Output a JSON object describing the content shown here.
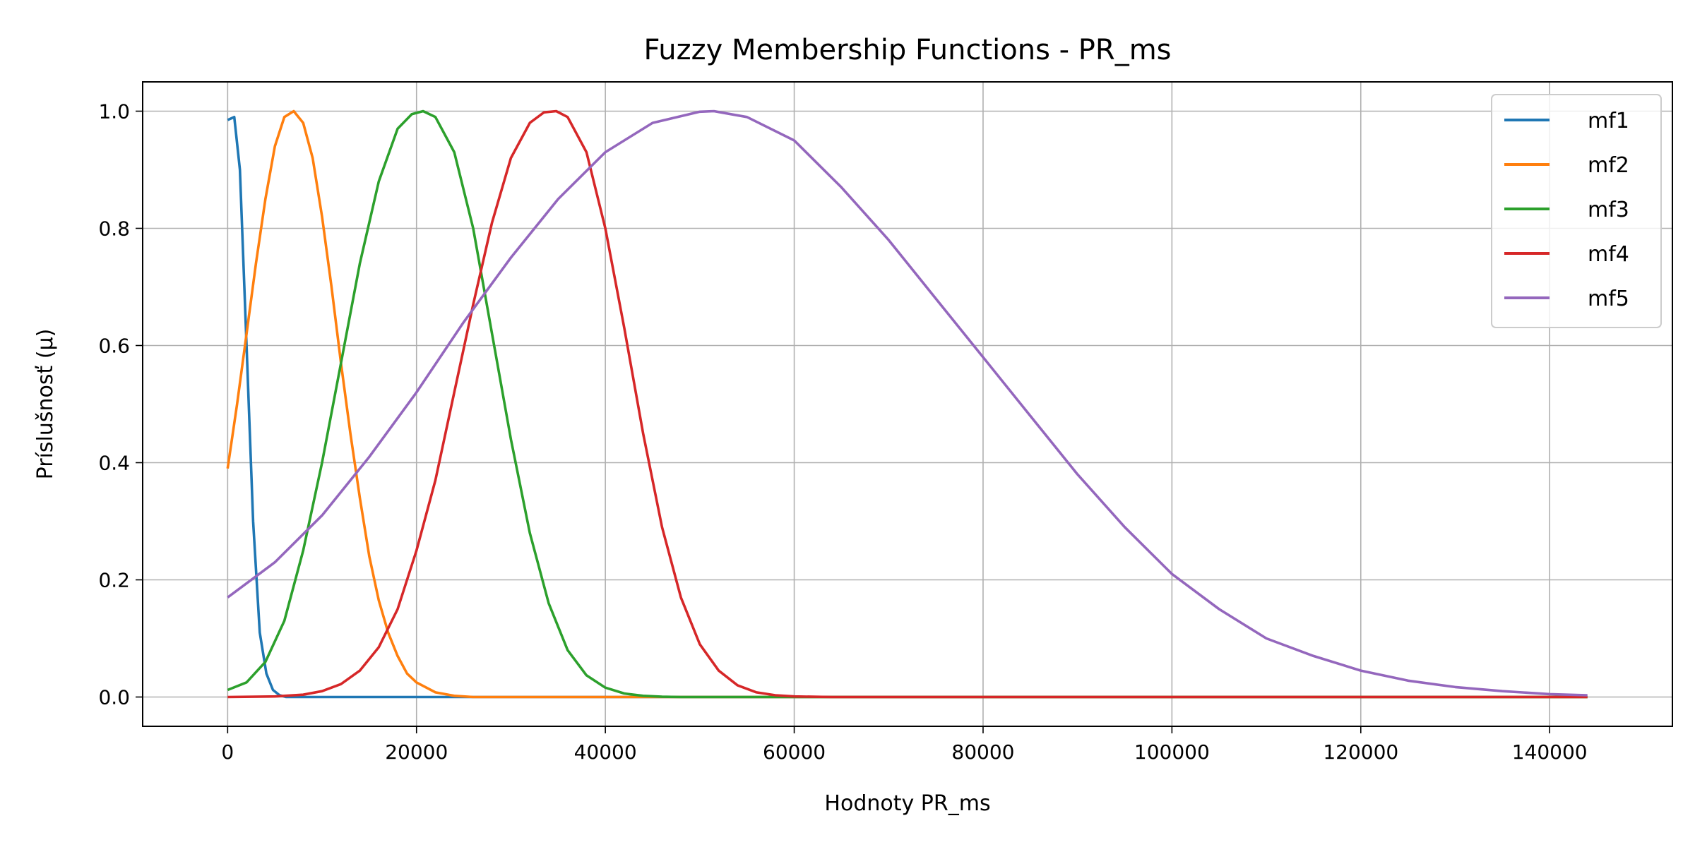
{
  "chart_data": {
    "type": "line",
    "title": "Fuzzy Membership Functions - PR_ms",
    "xlabel": "Hodnoty PR_ms",
    "ylabel": "Príslušnosť (μ)",
    "xlim": [
      -9000,
      153000
    ],
    "ylim": [
      -0.05,
      1.05
    ],
    "xticks": [
      0,
      20000,
      40000,
      60000,
      80000,
      100000,
      120000,
      140000
    ],
    "yticks": [
      0.0,
      0.2,
      0.4,
      0.6,
      0.8,
      1.0
    ],
    "xtick_labels": [
      "0",
      "20000",
      "40000",
      "60000",
      "80000",
      "100000",
      "120000",
      "140000"
    ],
    "ytick_labels": [
      "0.0",
      "0.2",
      "0.4",
      "0.6",
      "0.8",
      "1.0"
    ],
    "grid": true,
    "legend_position": "top-right",
    "series": [
      {
        "name": "mf1",
        "color": "#1f77b4",
        "x": [
          0,
          700,
          1300,
          2000,
          2700,
          3400,
          4100,
          4800,
          5500,
          6200,
          7000,
          8000,
          144000
        ],
        "y": [
          0.985,
          0.99,
          0.9,
          0.6,
          0.3,
          0.11,
          0.04,
          0.012,
          0.003,
          0.0,
          0.0,
          0.0,
          0.0
        ]
      },
      {
        "name": "mf2",
        "color": "#ff7f0e",
        "x": [
          0,
          1000,
          2000,
          3000,
          4000,
          5000,
          6000,
          7000,
          8000,
          9000,
          10000,
          11000,
          12000,
          13000,
          14000,
          15000,
          16000,
          17000,
          18000,
          19000,
          20000,
          22000,
          24000,
          26000,
          28000,
          144000
        ],
        "y": [
          0.39,
          0.5,
          0.62,
          0.74,
          0.85,
          0.94,
          0.99,
          1.0,
          0.98,
          0.92,
          0.82,
          0.7,
          0.57,
          0.45,
          0.34,
          0.24,
          0.165,
          0.11,
          0.07,
          0.04,
          0.025,
          0.008,
          0.002,
          0.0,
          0.0,
          0.0
        ]
      },
      {
        "name": "mf3",
        "color": "#2ca02c",
        "x": [
          0,
          2000,
          4000,
          6000,
          8000,
          10000,
          12000,
          14000,
          16000,
          18000,
          19500,
          20700,
          22000,
          24000,
          26000,
          28000,
          30000,
          32000,
          34000,
          36000,
          38000,
          40000,
          42000,
          44000,
          46000,
          48000,
          52000,
          60000,
          144000
        ],
        "y": [
          0.012,
          0.025,
          0.06,
          0.13,
          0.25,
          0.4,
          0.57,
          0.74,
          0.88,
          0.97,
          0.995,
          1.0,
          0.99,
          0.93,
          0.8,
          0.62,
          0.44,
          0.28,
          0.16,
          0.08,
          0.037,
          0.016,
          0.006,
          0.002,
          0.0005,
          0.0,
          0.0,
          0.0,
          0.0
        ]
      },
      {
        "name": "mf4",
        "color": "#d62728",
        "x": [
          0,
          5000,
          8000,
          10000,
          12000,
          14000,
          16000,
          18000,
          20000,
          22000,
          24000,
          26000,
          28000,
          30000,
          32000,
          33500,
          34800,
          36000,
          38000,
          40000,
          42000,
          44000,
          46000,
          48000,
          50000,
          52000,
          54000,
          56000,
          58000,
          60000,
          64000,
          70000,
          144000
        ],
        "y": [
          0.0,
          0.001,
          0.004,
          0.01,
          0.022,
          0.045,
          0.085,
          0.15,
          0.25,
          0.37,
          0.52,
          0.67,
          0.81,
          0.92,
          0.98,
          0.998,
          1.0,
          0.99,
          0.93,
          0.8,
          0.63,
          0.45,
          0.29,
          0.17,
          0.09,
          0.045,
          0.02,
          0.008,
          0.003,
          0.001,
          0.0,
          0.0,
          0.0
        ]
      },
      {
        "name": "mf5",
        "color": "#9467bd",
        "x": [
          0,
          5000,
          10000,
          15000,
          20000,
          25000,
          30000,
          35000,
          40000,
          45000,
          50000,
          51500,
          55000,
          60000,
          65000,
          70000,
          75000,
          80000,
          85000,
          90000,
          95000,
          100000,
          105000,
          110000,
          115000,
          120000,
          125000,
          130000,
          135000,
          140000,
          144000
        ],
        "y": [
          0.17,
          0.23,
          0.31,
          0.41,
          0.52,
          0.64,
          0.75,
          0.85,
          0.93,
          0.98,
          0.999,
          1.0,
          0.99,
          0.95,
          0.87,
          0.78,
          0.68,
          0.58,
          0.48,
          0.38,
          0.29,
          0.21,
          0.15,
          0.1,
          0.07,
          0.045,
          0.028,
          0.017,
          0.01,
          0.005,
          0.003
        ]
      }
    ]
  }
}
